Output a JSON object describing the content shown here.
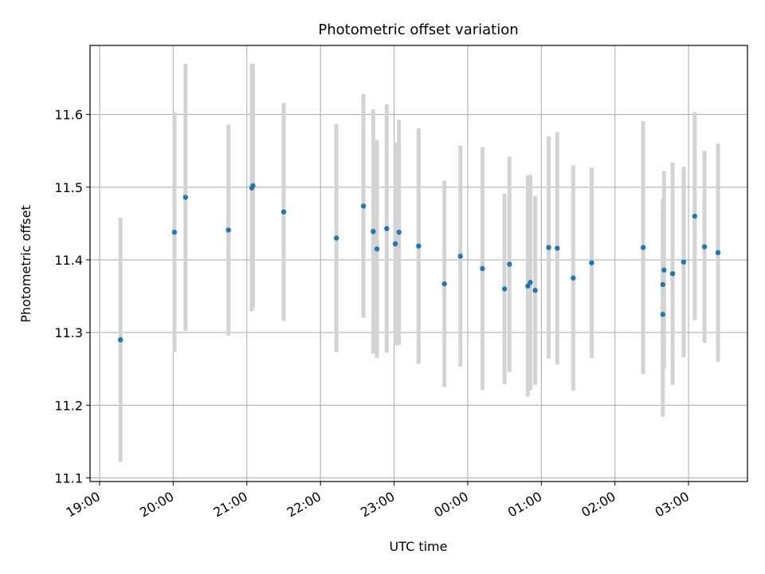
{
  "chart_data": {
    "type": "scatter",
    "title": "Photometric offset variation",
    "xlabel": "UTC time",
    "ylabel": "Photometric offset",
    "x_tick_labels": [
      "19:00",
      "20:00",
      "21:00",
      "22:00",
      "23:00",
      "00:00",
      "01:00",
      "02:00",
      "03:00"
    ],
    "y_ticks": [
      11.1,
      11.2,
      11.3,
      11.4,
      11.5,
      11.6
    ],
    "y_tick_labels": [
      "11.1",
      "11.2",
      "11.3",
      "11.4",
      "11.5",
      "11.6"
    ],
    "xlim_hours_since_1900": [
      -0.13,
      8.8
    ],
    "ylim": [
      11.095,
      11.695
    ],
    "grid": true,
    "colors": {
      "point": "#1f77b4",
      "errorbar": "#d3d3d3",
      "grid": "#b0b0b0"
    },
    "points": [
      {
        "x": "19:17",
        "y": 11.29,
        "err": 0.168
      },
      {
        "x": "20:01",
        "y": 11.438,
        "err": 0.165
      },
      {
        "x": "20:10",
        "y": 11.486,
        "err": 0.184
      },
      {
        "x": "20:45",
        "y": 11.441,
        "err": 0.145
      },
      {
        "x": "21:04",
        "y": 11.499,
        "err": 0.17
      },
      {
        "x": "21:05",
        "y": 11.502,
        "err": 0.168
      },
      {
        "x": "21:30",
        "y": 11.466,
        "err": 0.15
      },
      {
        "x": "22:13",
        "y": 11.43,
        "err": 0.157
      },
      {
        "x": "22:35",
        "y": 11.474,
        "err": 0.154
      },
      {
        "x": "22:43",
        "y": 11.439,
        "err": 0.168
      },
      {
        "x": "22:46",
        "y": 11.415,
        "err": 0.15
      },
      {
        "x": "22:54",
        "y": 11.443,
        "err": 0.171
      },
      {
        "x": "23:01",
        "y": 11.422,
        "err": 0.14
      },
      {
        "x": "23:04",
        "y": 11.438,
        "err": 0.155
      },
      {
        "x": "23:20",
        "y": 11.419,
        "err": 0.162
      },
      {
        "x": "23:41",
        "y": 11.367,
        "err": 0.142
      },
      {
        "x": "23:54",
        "y": 11.405,
        "err": 0.152
      },
      {
        "x": "00:12",
        "y": 11.388,
        "err": 0.167
      },
      {
        "x": "00:30",
        "y": 11.36,
        "err": 0.131
      },
      {
        "x": "00:34",
        "y": 11.394,
        "err": 0.148
      },
      {
        "x": "00:49",
        "y": 11.364,
        "err": 0.152
      },
      {
        "x": "00:51",
        "y": 11.369,
        "err": 0.148
      },
      {
        "x": "00:55",
        "y": 11.358,
        "err": 0.13
      },
      {
        "x": "01:06",
        "y": 11.417,
        "err": 0.153
      },
      {
        "x": "01:13",
        "y": 11.416,
        "err": 0.16
      },
      {
        "x": "01:26",
        "y": 11.375,
        "err": 0.155
      },
      {
        "x": "01:41",
        "y": 11.396,
        "err": 0.131
      },
      {
        "x": "02:23",
        "y": 11.417,
        "err": 0.174
      },
      {
        "x": "02:39",
        "y": 11.366,
        "err": 0.118
      },
      {
        "x": "02:39",
        "y": 11.325,
        "err": 0.141
      },
      {
        "x": "02:40",
        "y": 11.386,
        "err": 0.136
      },
      {
        "x": "02:47",
        "y": 11.381,
        "err": 0.153
      },
      {
        "x": "02:56",
        "y": 11.397,
        "err": 0.131
      },
      {
        "x": "03:05",
        "y": 11.46,
        "err": 0.143
      },
      {
        "x": "03:13",
        "y": 11.418,
        "err": 0.132
      },
      {
        "x": "03:24",
        "y": 11.41,
        "err": 0.15
      }
    ]
  }
}
